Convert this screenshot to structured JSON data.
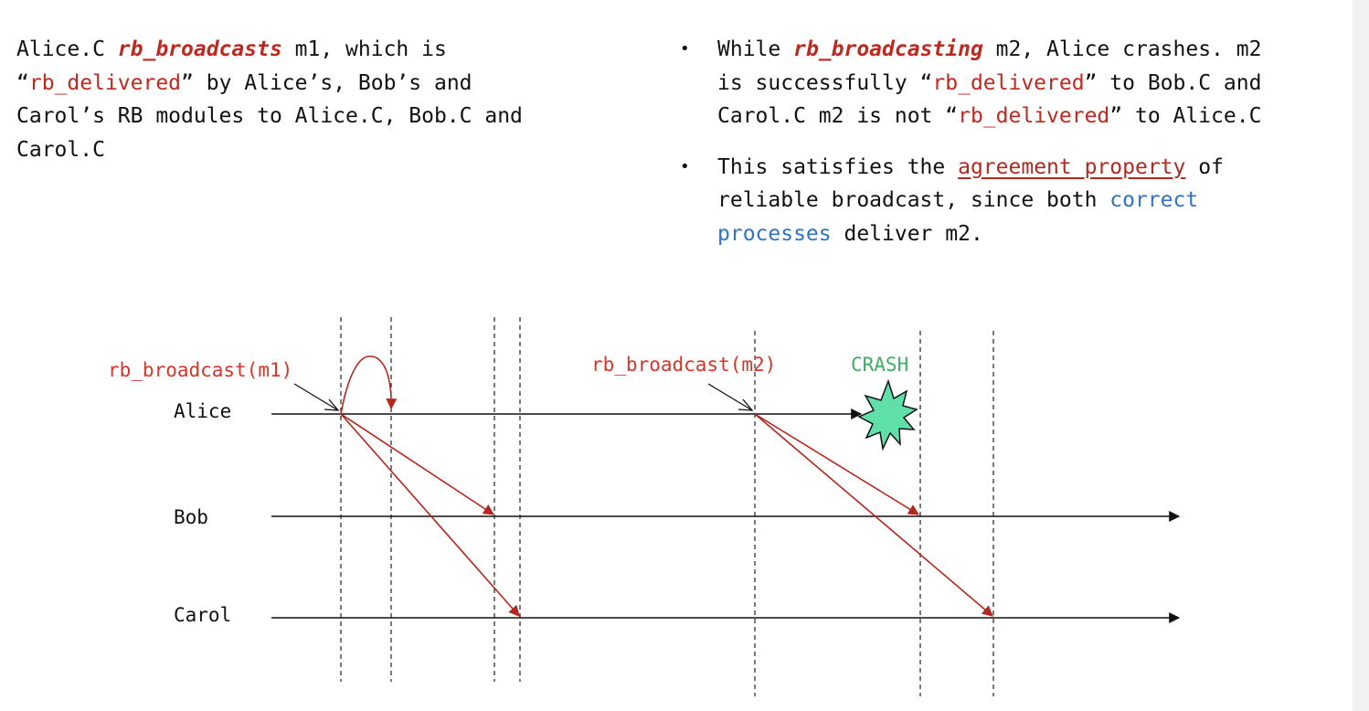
{
  "left_paragraph": {
    "line1_prefix": "Alice.C ",
    "line1_emph": "rb_broadcasts",
    "line1_suffix": " m1, which is",
    "line2_open": "“",
    "line2_red": "rb_delivered",
    "line2_rest": "” by Alice’s, Bob’s and",
    "line3": "Carol’s RB modules to Alice.C, Bob.C and",
    "line4": "Carol.C"
  },
  "bullets": {
    "b1": {
      "l1_prefix": "While ",
      "l1_emph": "rb_broadcasting",
      "l1_suffix": " m2, Alice crashes. m2",
      "l2_prefix": "is successfully “",
      "l2_red": "rb_delivered",
      "l2_suffix": "” to Bob.C and",
      "l3_prefix": "Carol.C m2 is not “",
      "l3_red": "rb_delivered",
      "l3_suffix": "” to Alice.C"
    },
    "b2": {
      "l1_prefix": "This satisfies the ",
      "l1_link": "agreement property",
      "l1_suffix": " of",
      "l2_prefix": "reliable broadcast, since both ",
      "l2_blue": "correct",
      "l3_blue": "processes",
      "l3_suffix": " deliver m2."
    }
  },
  "diagram": {
    "processes": [
      "Alice",
      "Bob",
      "Carol"
    ],
    "broadcast1_label": "rb_broadcast(m1)",
    "broadcast2_label": "rb_broadcast(m2)",
    "crash_label": "CRASH",
    "colors": {
      "message": "#b5261e",
      "label": "#d6352a",
      "crash_text": "#3dae63",
      "crash_fill": "#5ee0a8",
      "timeline": "#111111"
    }
  }
}
